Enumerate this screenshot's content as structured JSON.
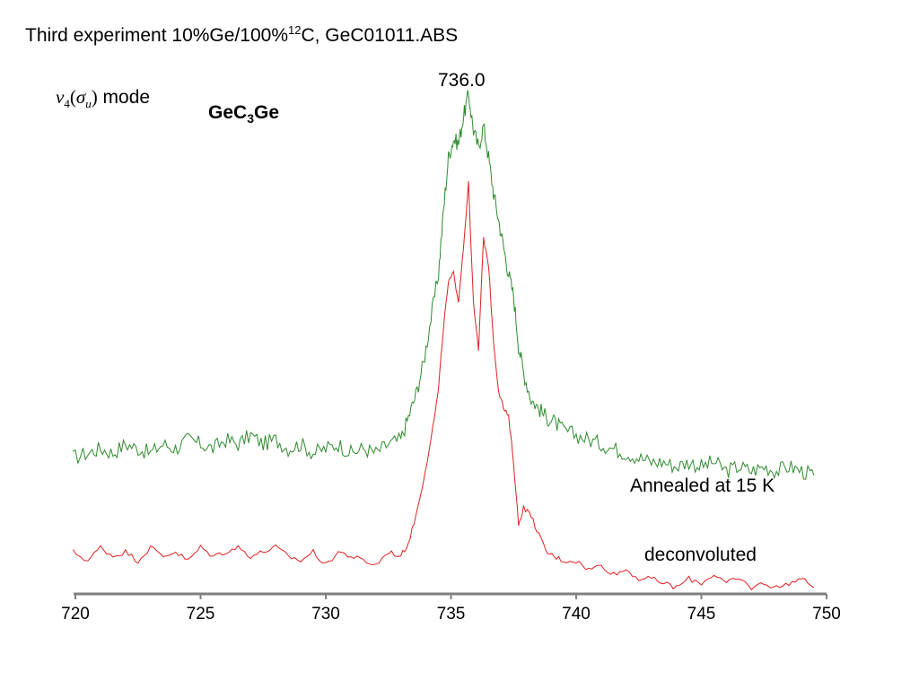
{
  "title": {
    "text_before": "Third experiment 10%Ge/100%",
    "superscript": "12",
    "text_after": "C, GeC01011.ABS"
  },
  "mode_label": {
    "symbol": "ν",
    "subscript": "4",
    "open_paren": "(",
    "sigma": "σ",
    "sigma_subscript": "u",
    "close_paren": ")",
    "word": " mode"
  },
  "molecule_label": {
    "part1": "GeC",
    "subscript": "3",
    "part2": "Ge"
  },
  "peak_label": "736.0",
  "chart_data": {
    "type": "line",
    "title": "",
    "xlabel": "",
    "ylabel": "",
    "xlim": [
      720,
      750
    ],
    "ylim": [
      0,
      1
    ],
    "grid": false,
    "ticks": [
      "720",
      "725",
      "730",
      "735",
      "740",
      "745",
      "750"
    ],
    "x": [
      719.9,
      720.5,
      721.0,
      721.5,
      722.0,
      722.5,
      723.0,
      723.5,
      724.0,
      724.5,
      725.0,
      725.5,
      726.0,
      726.5,
      727.0,
      727.5,
      728.0,
      728.5,
      729.0,
      729.5,
      730.0,
      730.5,
      731.0,
      731.5,
      732.0,
      732.5,
      733.0,
      733.3,
      733.6,
      733.9,
      734.2,
      734.5,
      734.7,
      734.9,
      735.1,
      735.3,
      735.5,
      735.7,
      735.9,
      736.1,
      736.3,
      736.5,
      736.7,
      736.9,
      737.1,
      737.3,
      737.5,
      737.7,
      737.9,
      738.2,
      738.5,
      738.8,
      739.1,
      739.5,
      740.0,
      740.5,
      741.0,
      741.5,
      742.0,
      742.5,
      743.0,
      743.5,
      744.0,
      744.5,
      745.0,
      745.5,
      746.0,
      746.5,
      747.0,
      747.5,
      748.0,
      748.5,
      749.0,
      749.5
    ],
    "series": [
      {
        "name": "Annealed at 15 K",
        "color": "#2e8b2e",
        "values": [
          0.19,
          0.2,
          0.21,
          0.2,
          0.22,
          0.21,
          0.2,
          0.22,
          0.21,
          0.23,
          0.22,
          0.21,
          0.23,
          0.22,
          0.24,
          0.22,
          0.23,
          0.21,
          0.22,
          0.2,
          0.21,
          0.22,
          0.2,
          0.21,
          0.2,
          0.22,
          0.23,
          0.28,
          0.33,
          0.4,
          0.5,
          0.6,
          0.74,
          0.86,
          0.9,
          0.89,
          0.95,
          1.0,
          0.92,
          0.88,
          0.93,
          0.86,
          0.78,
          0.72,
          0.66,
          0.6,
          0.55,
          0.44,
          0.38,
          0.32,
          0.3,
          0.28,
          0.27,
          0.25,
          0.24,
          0.23,
          0.22,
          0.21,
          0.2,
          0.19,
          0.18,
          0.18,
          0.17,
          0.18,
          0.17,
          0.18,
          0.16,
          0.17,
          0.16,
          0.17,
          0.16,
          0.17,
          0.16,
          0.15
        ]
      },
      {
        "name": "deconvoluted",
        "color": "#e02020",
        "values": [
          0.1,
          0.08,
          0.11,
          0.09,
          0.1,
          0.08,
          0.11,
          0.09,
          0.1,
          0.08,
          0.11,
          0.09,
          0.1,
          0.11,
          0.09,
          0.1,
          0.11,
          0.09,
          0.08,
          0.1,
          0.07,
          0.1,
          0.09,
          0.08,
          0.07,
          0.1,
          0.09,
          0.12,
          0.18,
          0.26,
          0.35,
          0.46,
          0.6,
          0.7,
          0.72,
          0.66,
          0.78,
          0.92,
          0.65,
          0.55,
          0.8,
          0.74,
          0.57,
          0.46,
          0.42,
          0.4,
          0.3,
          0.16,
          0.2,
          0.18,
          0.14,
          0.1,
          0.09,
          0.08,
          0.08,
          0.06,
          0.07,
          0.05,
          0.06,
          0.04,
          0.04,
          0.03,
          0.02,
          0.04,
          0.03,
          0.05,
          0.03,
          0.04,
          0.02,
          0.03,
          0.02,
          0.03,
          0.04,
          0.02
        ]
      }
    ]
  }
}
